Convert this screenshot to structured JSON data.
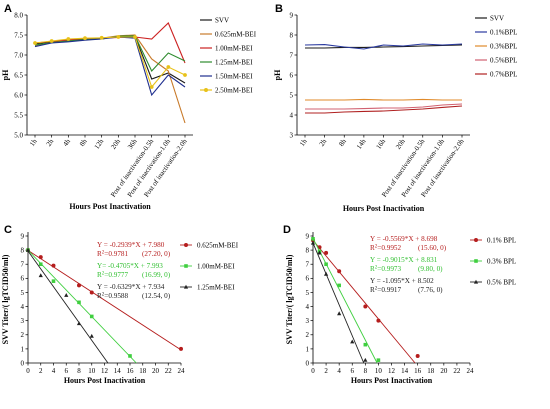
{
  "chart_data": [
    {
      "id": "A",
      "type": "line",
      "panel_label": "A",
      "categories": [
        "1h",
        "2h",
        "4h",
        "8h",
        "12h",
        "20h",
        "36h",
        "Post of inactivation-0.5h",
        "Post of inactivation-1.0h",
        "Post of inactivation-2.0h"
      ],
      "xlabel": "Hours Post Inactivation",
      "ylabel": "pH",
      "ylim": [
        5.0,
        8.0
      ],
      "yticks": [
        "5.0",
        "5.5",
        "6.0",
        "6.5",
        "7.0",
        "7.5",
        "8.0"
      ],
      "legend_position": "top-right",
      "series": [
        {
          "name": "SVV",
          "color": "#1a1a1a",
          "marker": "none",
          "values": [
            7.28,
            7.33,
            7.36,
            7.4,
            7.41,
            7.46,
            7.47,
            6.4,
            6.55,
            6.3
          ]
        },
        {
          "name": "0.625mM-BEI",
          "color": "#c87a2a",
          "marker": "none",
          "values": [
            7.24,
            7.31,
            7.36,
            7.38,
            7.42,
            7.48,
            7.5,
            6.9,
            6.6,
            5.3
          ]
        },
        {
          "name": "1.00mM-BEI",
          "color": "#cc2222",
          "marker": "none",
          "values": [
            7.3,
            7.34,
            7.38,
            7.41,
            7.42,
            7.44,
            7.45,
            7.4,
            7.8,
            6.8
          ]
        },
        {
          "name": "1.25mM-BEI",
          "color": "#2e8b2e",
          "marker": "none",
          "values": [
            7.25,
            7.31,
            7.35,
            7.39,
            7.4,
            7.47,
            7.48,
            6.6,
            7.05,
            6.85
          ]
        },
        {
          "name": "1.50mM-BEI",
          "color": "#1f2f8f",
          "marker": "none",
          "values": [
            7.21,
            7.3,
            7.33,
            7.37,
            7.4,
            7.45,
            7.42,
            6.0,
            6.5,
            6.2
          ]
        },
        {
          "name": "2.50mM-BEI",
          "color": "#e8c21a",
          "marker": "dot",
          "values": [
            7.3,
            7.35,
            7.4,
            7.42,
            7.43,
            7.45,
            7.45,
            6.2,
            6.7,
            6.5
          ]
        }
      ]
    },
    {
      "id": "B",
      "type": "line",
      "panel_label": "B",
      "categories": [
        "1h",
        "2h",
        "8h",
        "14h",
        "16h",
        "20h",
        "Post of inactivation-0.5h",
        "Post of inactivation-1.0h",
        "Post of inactivation-2.0h"
      ],
      "xlabel": "Hours Post Inactivation",
      "ylabel": "pH",
      "ylim": [
        3,
        9
      ],
      "yticks": [
        "3",
        "4",
        "5",
        "6",
        "7",
        "8",
        "9"
      ],
      "legend_position": "top-right",
      "series": [
        {
          "name": "SVV",
          "color": "#1a1a1a",
          "values": [
            7.35,
            7.35,
            7.38,
            7.38,
            7.4,
            7.42,
            7.45,
            7.48,
            7.5
          ]
        },
        {
          "name": "0.1%BPL",
          "color": "#2a3aa0",
          "values": [
            7.5,
            7.52,
            7.4,
            7.3,
            7.5,
            7.45,
            7.55,
            7.5,
            7.55
          ]
        },
        {
          "name": "0.3%BPL",
          "color": "#e08a2a",
          "values": [
            4.75,
            4.75,
            4.75,
            4.78,
            4.75,
            4.75,
            4.78,
            4.75,
            4.75
          ]
        },
        {
          "name": "0.5%BPL",
          "color": "#d06070",
          "values": [
            4.3,
            4.3,
            4.3,
            4.32,
            4.35,
            4.35,
            4.4,
            4.5,
            4.55
          ]
        },
        {
          "name": "0.7%BPL",
          "color": "#b02020",
          "values": [
            4.1,
            4.1,
            4.15,
            4.18,
            4.2,
            4.25,
            4.3,
            4.38,
            4.45
          ]
        }
      ]
    },
    {
      "id": "C",
      "type": "scatter",
      "panel_label": "C",
      "xlabel": "Hours Post Inactivation",
      "ylabel": "SVV Titer/( lgTCID50/ml)",
      "xlim": [
        0,
        24
      ],
      "ylim": [
        0,
        9
      ],
      "xticks": [
        "0",
        "2",
        "4",
        "6",
        "8",
        "10",
        "12",
        "14",
        "16",
        "18",
        "20",
        "22",
        "24"
      ],
      "yticks": [
        "0",
        "1",
        "2",
        "3",
        "4",
        "5",
        "6",
        "7",
        "8",
        "9"
      ],
      "legend_position": "right",
      "series": [
        {
          "name": "0.625mM-BEI",
          "color": "#b51d1d",
          "marker": "circle",
          "points": [
            [
              0,
              8.0
            ],
            [
              2,
              7.5
            ],
            [
              4,
              6.9
            ],
            [
              8,
              5.5
            ],
            [
              10,
              5.0
            ],
            [
              24,
              1.0
            ]
          ],
          "fit": {
            "slope": -0.2939,
            "intercept": 7.98,
            "xmax": 27.2
          }
        },
        {
          "name": "1.00mM-BEI",
          "color": "#3fcf3f",
          "marker": "square",
          "points": [
            [
              0,
              8.0
            ],
            [
              2,
              7.0
            ],
            [
              4,
              5.8
            ],
            [
              8,
              4.3
            ],
            [
              10,
              3.3
            ],
            [
              16,
              0.5
            ]
          ],
          "fit": {
            "slope": -0.4705,
            "intercept": 7.993,
            "xmax": 16.99
          }
        },
        {
          "name": "1.25mM-BEI",
          "color": "#222222",
          "marker": "triangle",
          "points": [
            [
              0,
              8.0
            ],
            [
              2,
              6.2
            ],
            [
              6,
              4.8
            ],
            [
              8,
              2.8
            ],
            [
              10,
              1.9
            ]
          ],
          "fit": {
            "slope": -0.6329,
            "intercept": 7.934,
            "xmax": 12.54
          }
        }
      ],
      "annotations": [
        {
          "equation": "Y = -0.2939*X + 7.980",
          "r2_label": "R",
          "r2_sup": "2",
          "r2_value": "=0.9781",
          "intercept_point": "(27.20, 0)",
          "color": "#b51d1d"
        },
        {
          "equation": "Y= -0.4705*X + 7.993",
          "r2_label": "R",
          "r2_sup": "2",
          "r2_value": "=0.9777",
          "intercept_point": "(16.99, 0)",
          "color": "#2fbf2f"
        },
        {
          "equation": "Y = -0.6329*X + 7.934",
          "r2_label": "R",
          "r2_sup": "2",
          "r2_value": "=0.9588",
          "intercept_point": "(12.54, 0)",
          "color": "#222222"
        }
      ]
    },
    {
      "id": "D",
      "type": "scatter",
      "panel_label": "D",
      "xlabel": "Hours Post Inactivation",
      "ylabel": "SVV Titer/( lgTCID50/ml)",
      "xlim": [
        0,
        24
      ],
      "ylim": [
        0,
        9
      ],
      "xticks": [
        "0",
        "2",
        "4",
        "6",
        "8",
        "10",
        "12",
        "14",
        "16",
        "18",
        "20",
        "22",
        "24"
      ],
      "yticks": [
        "0",
        "1",
        "2",
        "3",
        "4",
        "5",
        "6",
        "7",
        "8",
        "9"
      ],
      "legend_position": "right",
      "series": [
        {
          "name": "0.1% BPL",
          "color": "#b51d1d",
          "marker": "circle",
          "points": [
            [
              0,
              8.7
            ],
            [
              1,
              8.2
            ],
            [
              2,
              7.8
            ],
            [
              4,
              6.5
            ],
            [
              8,
              4.0
            ],
            [
              10,
              3.0
            ],
            [
              16,
              0.5
            ]
          ],
          "fit": {
            "slope": -0.5569,
            "intercept": 8.698,
            "xmax": 15.6
          }
        },
        {
          "name": "0.3% BPL",
          "color": "#3fcf3f",
          "marker": "square",
          "points": [
            [
              0,
              8.8
            ],
            [
              1,
              7.9
            ],
            [
              2,
              7.0
            ],
            [
              4,
              5.5
            ],
            [
              8,
              1.3
            ],
            [
              10,
              0.2
            ]
          ],
          "fit": {
            "slope": -0.9015,
            "intercept": 8.831,
            "xmax": 9.8
          }
        },
        {
          "name": "0.5% BPL",
          "color": "#222222",
          "marker": "triangle",
          "points": [
            [
              0,
              8.5
            ],
            [
              1,
              7.8
            ],
            [
              2,
              6.3
            ],
            [
              4,
              3.5
            ],
            [
              6,
              1.5
            ],
            [
              8,
              0.2
            ]
          ],
          "fit": {
            "slope": -1.095,
            "intercept": 8.502,
            "xmax": 7.76
          }
        }
      ],
      "annotations": [
        {
          "equation": "Y = -0.5569*X + 8.698",
          "r2_label": "R",
          "r2_sup": "2",
          "r2_value": "=0.9952",
          "intercept_point": "(15.60, 0)",
          "color": "#b51d1d"
        },
        {
          "equation": "Y = -0.9015*X + 8.831",
          "r2_label": "R",
          "r2_sup": "2",
          "r2_value": "=0.9973",
          "intercept_point": "(9.80, 0)",
          "color": "#2fbf2f"
        },
        {
          "equation": "Y = -1.095*X + 8.502",
          "r2_label": "R",
          "r2_sup": "2",
          "r2_value": "=0.9917",
          "intercept_point": "(7.76, 0)",
          "color": "#222222"
        }
      ]
    }
  ]
}
